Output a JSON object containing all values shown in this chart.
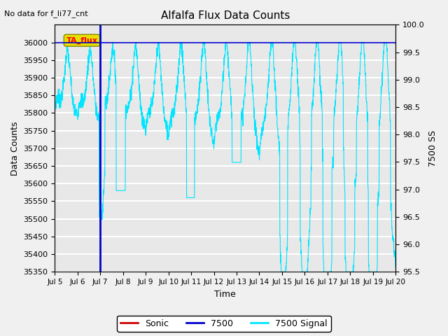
{
  "title": "Alfalfa Flux Data Counts",
  "top_left_text": "No data for f_li77_cnt",
  "xlabel": "Time",
  "ylabel_left": "Data Counts",
  "ylabel_right": "7500 SS",
  "ylim_left": [
    35350,
    36050
  ],
  "ylim_right": [
    95.5,
    100.0
  ],
  "xlim": [
    0,
    15
  ],
  "xtick_labels": [
    "Jul 5",
    "Jul 6",
    "Jul 7",
    "Jul 8",
    "Jul 9",
    "Jul 10",
    "Jul 11",
    "Jul 12",
    "Jul 13",
    "Jul 14",
    "Jul 15",
    "Jul 16",
    "Jul 17",
    "Jul 18",
    "Jul 19",
    "Jul 20"
  ],
  "xtick_positions": [
    0,
    1,
    2,
    3,
    4,
    5,
    6,
    7,
    8,
    9,
    10,
    11,
    12,
    13,
    14,
    15
  ],
  "yticks_left": [
    35350,
    35400,
    35450,
    35500,
    35550,
    35600,
    35650,
    35700,
    35750,
    35800,
    35850,
    35900,
    35950,
    36000
  ],
  "yticks_right": [
    95.5,
    96.0,
    96.5,
    97.0,
    97.5,
    98.0,
    98.5,
    99.0,
    99.5,
    100.0
  ],
  "blue_line_x": 2.0,
  "blue_line_color": "#0000cc",
  "cyan_line_color": "#00e5ff",
  "red_line_color": "#cc0000",
  "horizontal_line_y": 36000,
  "plot_bg_color": "#e8e8e8",
  "fig_bg_color": "#f0f0f0",
  "legend_entries": [
    "Sonic",
    "7500",
    "7500 Signal"
  ],
  "legend_colors": [
    "#cc0000",
    "#0000cc",
    "#00e5ff"
  ],
  "tag_label": "TA_flux",
  "tag_y": 36000,
  "figsize": [
    6.4,
    4.8
  ],
  "dpi": 100
}
